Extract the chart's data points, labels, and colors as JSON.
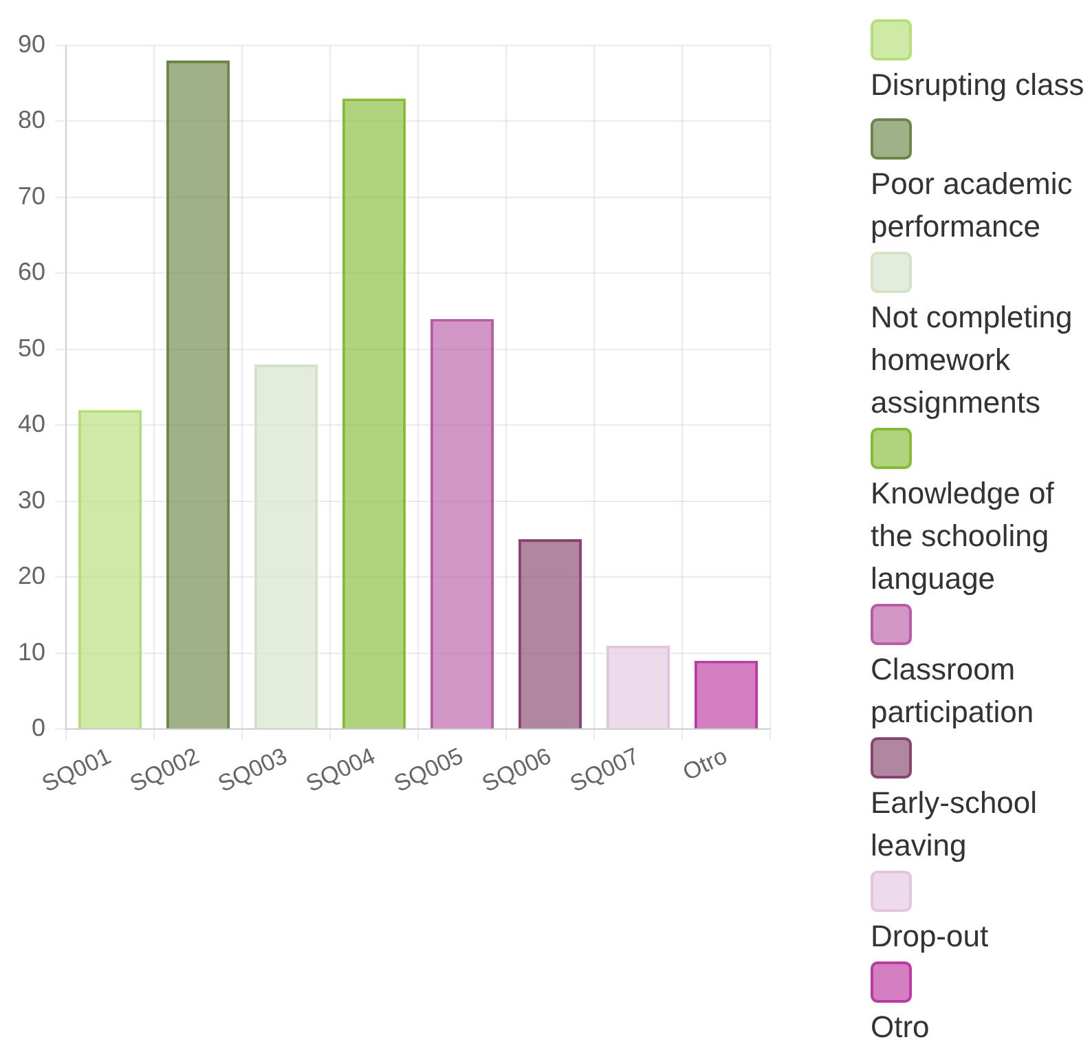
{
  "chart_data": {
    "type": "bar",
    "categories": [
      "SQ001",
      "SQ002",
      "SQ003",
      "SQ004",
      "SQ005",
      "SQ006",
      "SQ007",
      "Otro"
    ],
    "series": [
      {
        "name": "Disrupting class",
        "color": "#b5df76",
        "values": [
          42,
          null,
          null,
          null,
          null,
          null,
          null,
          null
        ]
      },
      {
        "name": "Poor academic performance",
        "color": "#6d8548",
        "values": [
          null,
          88,
          null,
          null,
          null,
          null,
          null,
          null
        ]
      },
      {
        "name": "Not completing homework assignments",
        "color": "#d5e2c8",
        "values": [
          null,
          null,
          48,
          null,
          null,
          null,
          null,
          null
        ]
      },
      {
        "name": "Knowledge of the schooling language",
        "color": "#85bb39",
        "values": [
          null,
          null,
          null,
          83,
          null,
          null,
          null,
          null
        ]
      },
      {
        "name": "Classroom participation",
        "color": "#b85ca7",
        "values": [
          null,
          null,
          null,
          null,
          54,
          null,
          null,
          null
        ]
      },
      {
        "name": "Early-school leaving",
        "color": "#85456f",
        "values": [
          null,
          null,
          null,
          null,
          null,
          25,
          null,
          null
        ]
      },
      {
        "name": "Drop-out",
        "color": "#e3c6de",
        "values": [
          null,
          null,
          null,
          null,
          null,
          null,
          11,
          null
        ]
      },
      {
        "name": "Otro",
        "color": "#bc3ba1",
        "values": [
          null,
          null,
          null,
          null,
          null,
          null,
          null,
          9
        ]
      }
    ],
    "ylim": [
      0,
      90
    ],
    "yticks": [
      0,
      10,
      20,
      30,
      40,
      50,
      60,
      70,
      80,
      90
    ],
    "grid": true,
    "legend": "right"
  }
}
